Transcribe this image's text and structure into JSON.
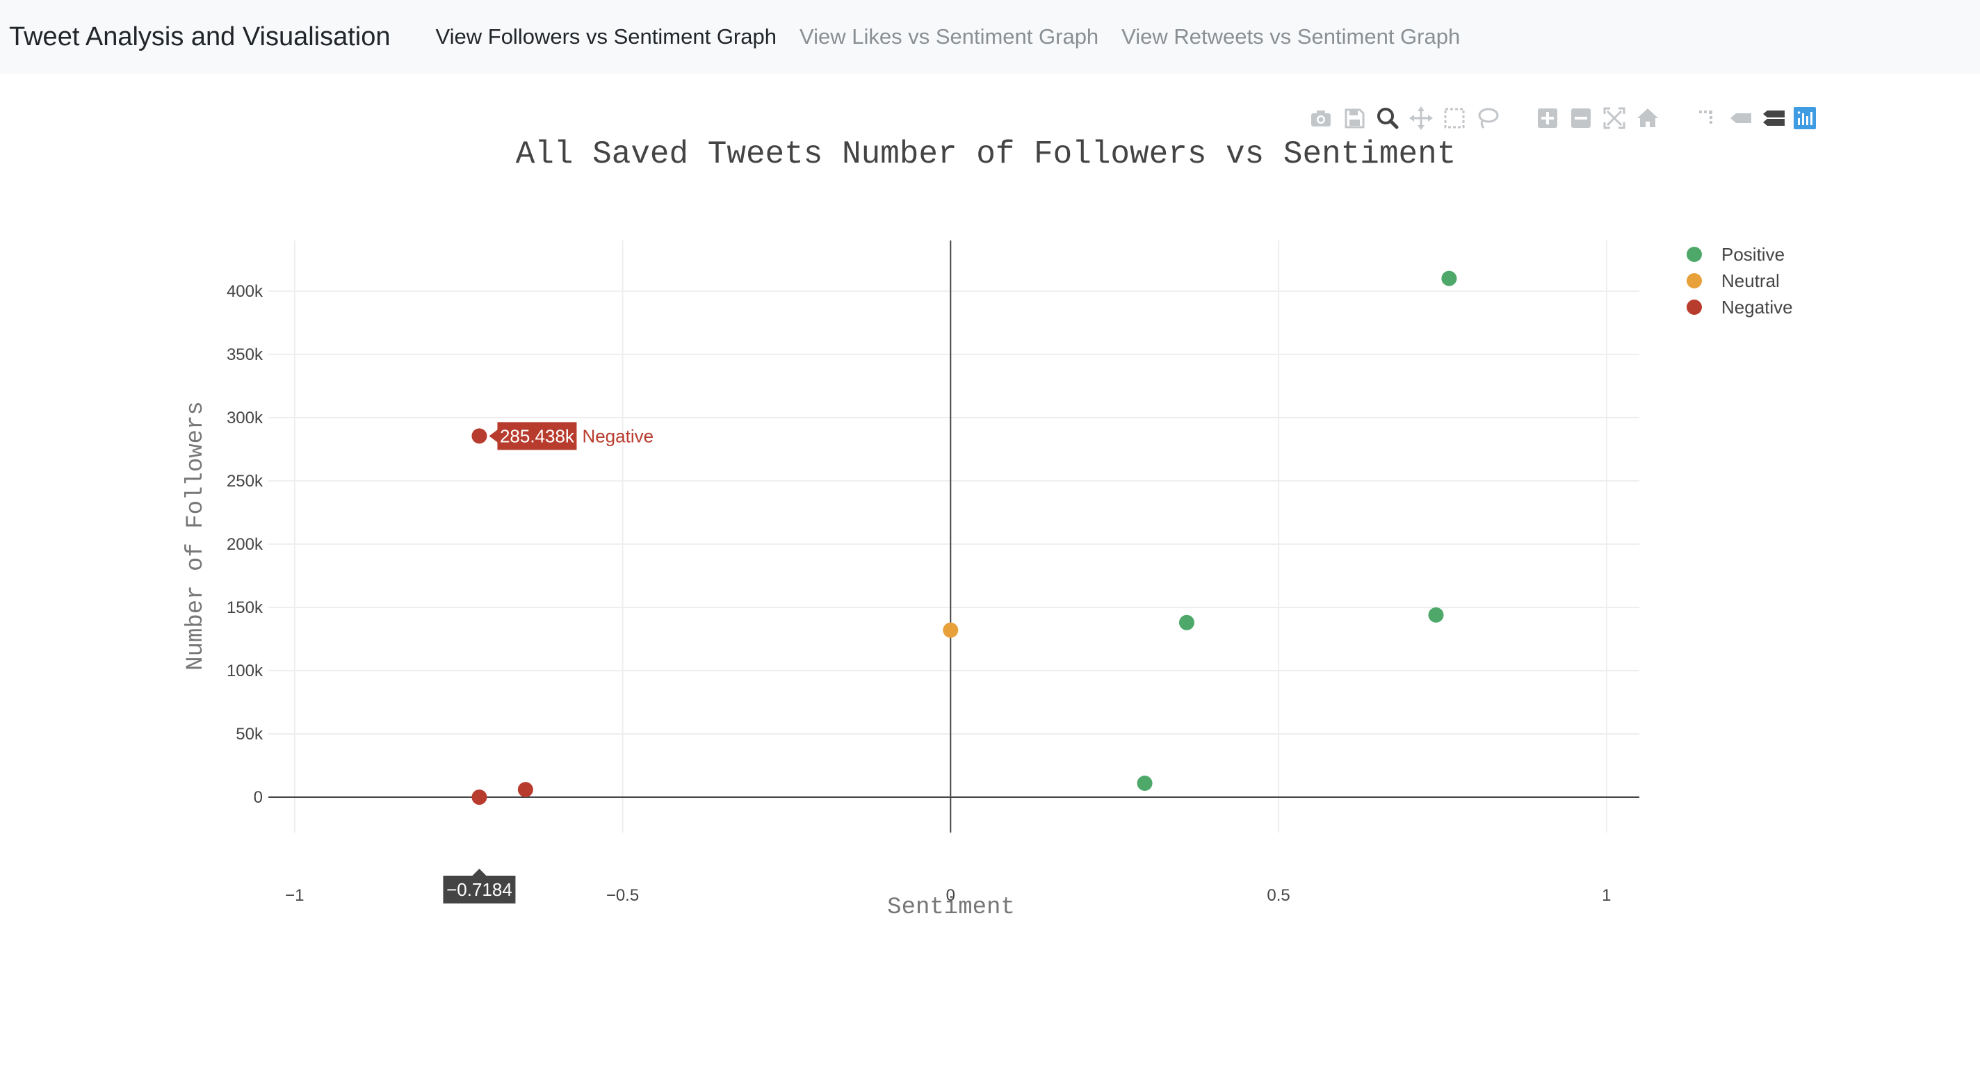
{
  "navbar": {
    "brand": "Tweet Analysis and Visualisation",
    "links": [
      {
        "label": "View Followers vs Sentiment Graph",
        "active": true
      },
      {
        "label": "View Likes vs Sentiment Graph",
        "active": false
      },
      {
        "label": "View Retweets vs Sentiment Graph",
        "active": false
      }
    ]
  },
  "modebar": {
    "buttons": [
      "camera-icon",
      "save-icon",
      "zoom-icon",
      "pan-icon",
      "box-select-icon",
      "lasso-icon",
      "zoom-in-icon",
      "zoom-out-icon",
      "autoscale-icon",
      "reset-axes-icon",
      "spike-lines-icon",
      "hover-closest-icon",
      "hover-compare-icon",
      "plotly-logo-icon"
    ]
  },
  "colors": {
    "positive": "#4ea86a",
    "neutral": "#e8a13a",
    "negative": "#b83c2e",
    "tooltip_dark": "#444444",
    "modebar_icon": "#c3c6c9",
    "modebar_active": "#444444",
    "plotly_logo": "#3f9be2"
  },
  "chart_data": {
    "type": "scatter",
    "title": "All Saved Tweets Number of Followers vs Sentiment",
    "xlabel": "Sentiment",
    "ylabel": "Number of Followers",
    "xlim": [
      -1.04,
      1.05
    ],
    "ylim": [
      -28000,
      440000
    ],
    "x_ticks": [
      -1,
      -0.5,
      0,
      0.5,
      1
    ],
    "x_tick_labels": [
      "−1",
      "−0.5",
      "0",
      "0.5",
      "1"
    ],
    "y_ticks": [
      0,
      50000,
      100000,
      150000,
      200000,
      250000,
      300000,
      350000,
      400000
    ],
    "y_tick_labels": [
      "0",
      "50k",
      "100k",
      "150k",
      "200k",
      "250k",
      "300k",
      "350k",
      "400k"
    ],
    "grid": true,
    "legend_position": "top-right",
    "series": [
      {
        "name": "Positive",
        "color": "#4ea86a",
        "points": [
          {
            "x": 0.76,
            "y": 410000
          },
          {
            "x": 0.36,
            "y": 138000
          },
          {
            "x": 0.74,
            "y": 144000
          },
          {
            "x": 0.296,
            "y": 11000
          }
        ]
      },
      {
        "name": "Neutral",
        "color": "#e8a13a",
        "points": [
          {
            "x": 0.0,
            "y": 132000
          }
        ]
      },
      {
        "name": "Negative",
        "color": "#b83c2e",
        "points": [
          {
            "x": -0.7184,
            "y": 285438
          },
          {
            "x": -0.7184,
            "y": 0
          },
          {
            "x": -0.648,
            "y": 6000
          }
        ]
      }
    ],
    "hover": {
      "x": -0.7184,
      "y": 285438,
      "x_label": "−0.7184",
      "y_label": "285.438k",
      "series_label": "Negative"
    }
  }
}
